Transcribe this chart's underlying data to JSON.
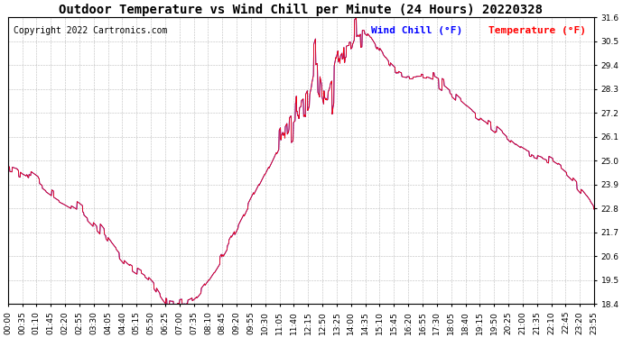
{
  "title": "Outdoor Temperature vs Wind Chill per Minute (24 Hours) 20220328",
  "copyright": "Copyright 2022 Cartronics.com",
  "legend_wind_chill": "Wind Chill (°F)",
  "legend_temperature": "Temperature (°F)",
  "wind_chill_color": "blue",
  "temperature_color": "red",
  "background_color": "#ffffff",
  "grid_color": "#bbbbbb",
  "ymin": 18.4,
  "ymax": 31.6,
  "ytick_step": 1.1,
  "title_fontsize": 10,
  "copyright_fontsize": 7,
  "legend_fontsize": 8,
  "tick_fontsize": 6.5,
  "xtick_labels": [
    "00:00",
    "00:35",
    "01:10",
    "01:45",
    "02:20",
    "02:55",
    "03:30",
    "04:05",
    "04:40",
    "05:15",
    "05:50",
    "06:25",
    "07:00",
    "07:35",
    "08:10",
    "08:45",
    "09:20",
    "09:55",
    "10:30",
    "11:05",
    "11:40",
    "12:15",
    "12:50",
    "13:25",
    "14:00",
    "14:35",
    "15:10",
    "15:45",
    "16:20",
    "16:55",
    "17:30",
    "18:05",
    "18:40",
    "19:15",
    "19:50",
    "20:25",
    "21:00",
    "21:35",
    "22:10",
    "22:45",
    "23:20",
    "23:55"
  ],
  "keypoints_t": [
    0,
    60,
    120,
    180,
    240,
    300,
    360,
    390,
    420,
    450,
    480,
    540,
    600,
    660,
    700,
    720,
    740,
    760,
    780,
    810,
    840,
    870,
    900,
    960,
    1020,
    1080,
    1140,
    1200,
    1260,
    1320,
    1380,
    1440
  ],
  "keypoints_v": [
    24.7,
    24.2,
    23.4,
    22.7,
    21.5,
    20.2,
    19.3,
    18.5,
    18.45,
    18.6,
    19.2,
    21.0,
    23.2,
    25.5,
    26.9,
    27.2,
    27.9,
    29.2,
    27.8,
    29.8,
    30.5,
    31.0,
    30.4,
    29.0,
    28.9,
    28.3,
    27.3,
    26.5,
    25.5,
    25.0,
    24.2,
    22.8
  ]
}
